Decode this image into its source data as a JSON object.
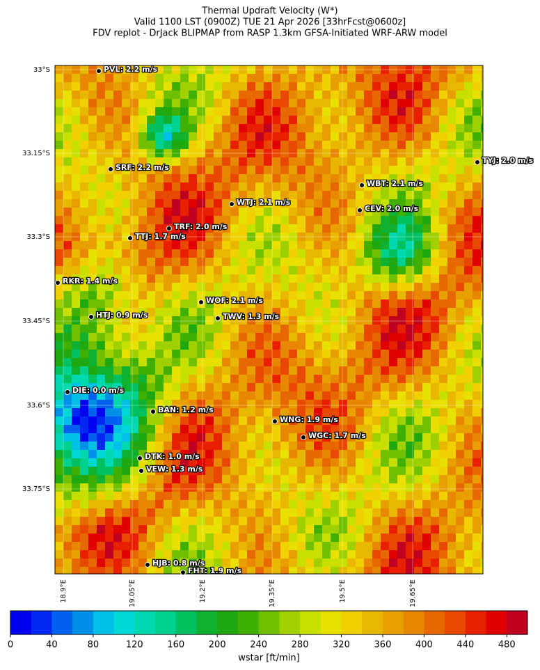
{
  "title": [
    "Thermal Updraft Velocity (W*)",
    "Valid 1100 LST (0900Z) TUE 21 Apr 2026 [33hrFcst@0600z]",
    "FDV replot - DrJack BLIPMAP from RASP 1.3km GFSA-Initiated WRF-ARW model"
  ],
  "map": {
    "lat_ticks": [
      "33°S",
      "33.15°S",
      "33.3°S",
      "33.45°S",
      "33.6°S",
      "33.75°S"
    ],
    "lon_ticks": [
      "18.9°E",
      "19.05°E",
      "19.2°E",
      "19.35°E",
      "19.5°E",
      "19.65°E"
    ]
  },
  "stations": [
    "PVL: 2.2 m/s",
    "SRF: 2.2 m/s",
    "WTJ: 2.1 m/s",
    "TRF: 2.0 m/s",
    "TTJ: 1.7 m/s",
    "RKR: 1.4 m/s",
    "WOF: 2.1 m/s",
    "TWV: 1.3 m/s",
    "HTJ: 0.9 m/s",
    "WBT: 2.1 m/s",
    "CEV: 2.0 m/s",
    "TYJ: 2.0 m/s",
    "DIE: 0.0 m/s",
    "BAN: 1.2 m/s",
    "WNG: 1.9 m/s",
    "WGC: 1.7 m/s",
    "DTK: 1.0 m/s",
    "VEW: 1.3 m/s",
    "HJB: 0.8 m/s",
    "FHT: 1.9 m/s"
  ],
  "colorbar": {
    "label": "wstar [ft/min]",
    "range": [
      0,
      500
    ],
    "ticks": [
      0,
      40,
      80,
      120,
      160,
      200,
      240,
      280,
      320,
      360,
      400,
      440,
      480
    ],
    "colors": [
      "#0000f0",
      "#0028f0",
      "#0060f0",
      "#0090e8",
      "#00c0e8",
      "#00d8d8",
      "#00d8b0",
      "#00d090",
      "#00c060",
      "#10b030",
      "#20a810",
      "#40b000",
      "#70c000",
      "#a0d000",
      "#c8e000",
      "#e8e000",
      "#f0d000",
      "#e8b800",
      "#e8a000",
      "#e88800",
      "#e86800",
      "#e84800",
      "#e82000",
      "#e00000",
      "#c00020"
    ]
  }
}
